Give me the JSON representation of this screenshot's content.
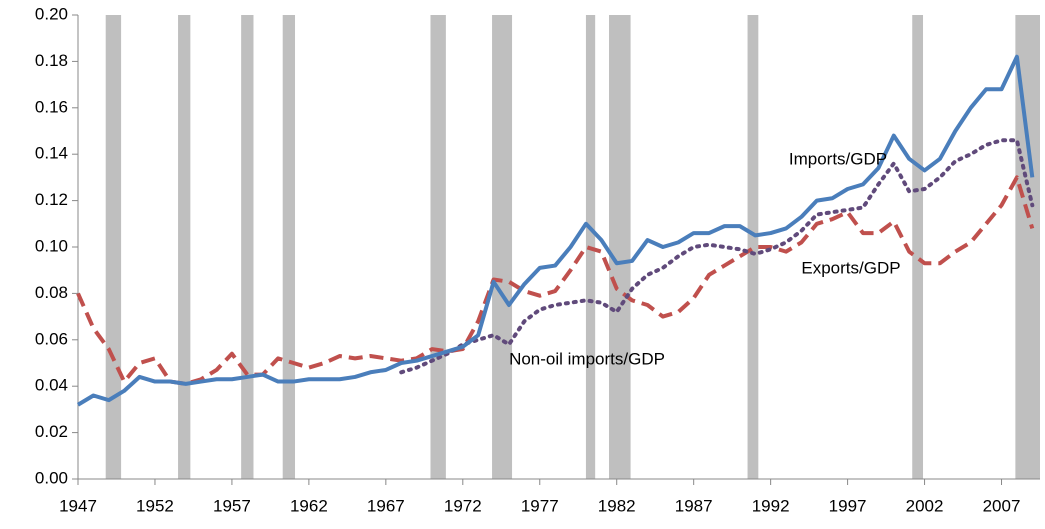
{
  "chart_data": {
    "type": "line",
    "x": [
      1947,
      1948,
      1949,
      1950,
      1951,
      1952,
      1953,
      1954,
      1955,
      1956,
      1957,
      1958,
      1959,
      1960,
      1961,
      1962,
      1963,
      1964,
      1965,
      1966,
      1967,
      1968,
      1969,
      1970,
      1971,
      1972,
      1973,
      1974,
      1975,
      1976,
      1977,
      1978,
      1979,
      1980,
      1981,
      1982,
      1983,
      1984,
      1985,
      1986,
      1987,
      1988,
      1989,
      1990,
      1991,
      1992,
      1993,
      1994,
      1995,
      1996,
      1997,
      1998,
      1999,
      2000,
      2001,
      2002,
      2003,
      2004,
      2005,
      2006,
      2007,
      2008,
      2009
    ],
    "xlim": [
      1947,
      2009.5
    ],
    "xticks": [
      1947,
      1952,
      1957,
      1962,
      1967,
      1972,
      1977,
      1982,
      1987,
      1992,
      1997,
      2002,
      2007
    ],
    "ylim": [
      0,
      0.2
    ],
    "yticks": [
      {
        "value": 0,
        "label": "0.00"
      },
      {
        "value": 0.02,
        "label": "0.02"
      },
      {
        "value": 0.04,
        "label": "0.04"
      },
      {
        "value": 0.06,
        "label": "0.06"
      },
      {
        "value": 0.08,
        "label": "0.08"
      },
      {
        "value": 0.1,
        "label": "0.10"
      },
      {
        "value": 0.12,
        "label": "0.12"
      },
      {
        "value": 0.14,
        "label": "0.14"
      },
      {
        "value": 0.16,
        "label": "0.16"
      },
      {
        "value": 0.18,
        "label": "0.18"
      },
      {
        "value": 0.2,
        "label": "0.20"
      }
    ],
    "recessions": [
      [
        1948.8,
        1949.8
      ],
      [
        1953.5,
        1954.3
      ],
      [
        1957.6,
        1958.4
      ],
      [
        1960.3,
        1961.1
      ],
      [
        1969.9,
        1970.9
      ],
      [
        1973.9,
        1975.2
      ],
      [
        1980.0,
        1980.6
      ],
      [
        1981.5,
        1982.9
      ],
      [
        1990.5,
        1991.2
      ],
      [
        2001.2,
        2001.9
      ],
      [
        2007.9,
        2009.5
      ]
    ],
    "recession_color": "#bfbfbf",
    "series": [
      {
        "name": "Imports/GDP",
        "color": "#4a7ebb",
        "style": "solid",
        "values": [
          0.032,
          0.036,
          0.034,
          0.038,
          0.044,
          0.042,
          0.042,
          0.041,
          0.042,
          0.043,
          0.043,
          0.044,
          0.045,
          0.042,
          0.042,
          0.043,
          0.043,
          0.043,
          0.044,
          0.046,
          0.047,
          0.05,
          0.051,
          0.053,
          0.055,
          0.057,
          0.062,
          0.085,
          0.075,
          0.084,
          0.091,
          0.092,
          0.1,
          0.11,
          0.103,
          0.093,
          0.094,
          0.103,
          0.1,
          0.102,
          0.106,
          0.106,
          0.109,
          0.109,
          0.105,
          0.106,
          0.108,
          0.113,
          0.12,
          0.121,
          0.125,
          0.127,
          0.134,
          0.148,
          0.138,
          0.133,
          0.138,
          0.15,
          0.16,
          0.168,
          0.168,
          0.182,
          0.13
        ]
      },
      {
        "name": "Exports/GDP",
        "color": "#c0504d",
        "style": "dashed",
        "values": [
          0.08,
          0.065,
          0.056,
          0.042,
          0.05,
          0.052,
          0.042,
          0.041,
          0.043,
          0.047,
          0.054,
          0.045,
          0.045,
          0.052,
          0.05,
          0.048,
          0.05,
          0.053,
          0.052,
          0.053,
          0.052,
          0.051,
          0.052,
          0.056,
          0.055,
          0.056,
          0.068,
          0.086,
          0.085,
          0.081,
          0.079,
          0.081,
          0.09,
          0.1,
          0.098,
          0.082,
          0.077,
          0.075,
          0.07,
          0.072,
          0.078,
          0.088,
          0.092,
          0.096,
          0.1,
          0.1,
          0.098,
          0.102,
          0.11,
          0.112,
          0.115,
          0.106,
          0.106,
          0.111,
          0.098,
          0.093,
          0.093,
          0.098,
          0.102,
          0.11,
          0.118,
          0.13,
          0.108
        ]
      },
      {
        "name": "Non-oil imports/GDP",
        "color": "#604a7b",
        "style": "dotted",
        "values": [
          null,
          null,
          null,
          null,
          null,
          null,
          null,
          null,
          null,
          null,
          null,
          null,
          null,
          null,
          null,
          null,
          null,
          null,
          null,
          null,
          null,
          0.046,
          0.048,
          0.051,
          0.054,
          0.058,
          0.06,
          0.062,
          0.058,
          0.068,
          0.073,
          0.075,
          0.076,
          0.077,
          0.076,
          0.072,
          0.082,
          0.088,
          0.091,
          0.096,
          0.1,
          0.101,
          0.1,
          0.099,
          0.097,
          0.099,
          0.102,
          0.107,
          0.114,
          0.115,
          0.116,
          0.117,
          0.127,
          0.136,
          0.124,
          0.125,
          0.13,
          0.137,
          0.14,
          0.144,
          0.146,
          0.146,
          0.118
        ]
      }
    ]
  }
}
